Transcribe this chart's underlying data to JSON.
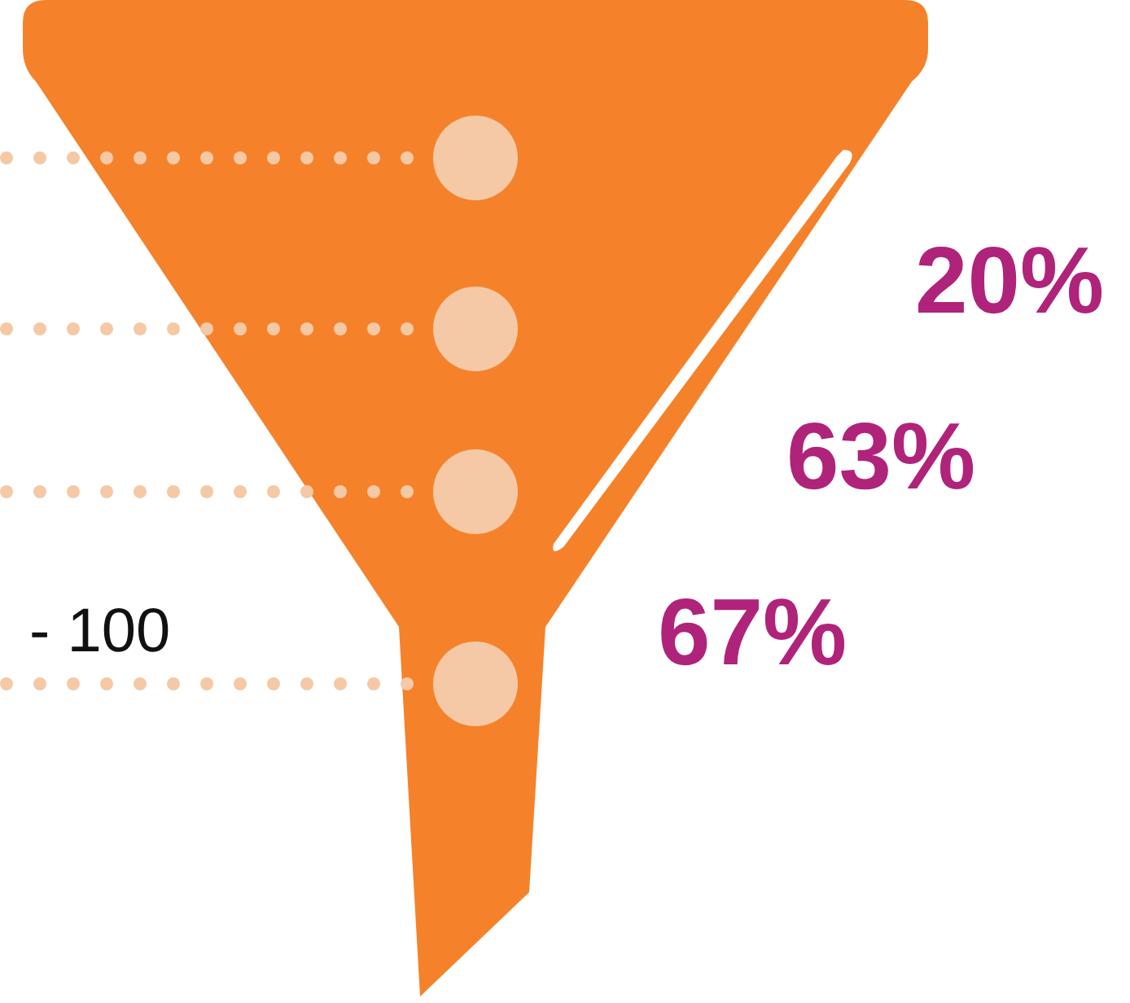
{
  "chart_data": {
    "type": "other",
    "categories": [
      null,
      null,
      null
    ],
    "values": [
      20,
      63,
      67
    ],
    "value_labels": [
      "20%",
      "63%",
      "67%"
    ],
    "annotations": [
      "- 100"
    ]
  }
}
